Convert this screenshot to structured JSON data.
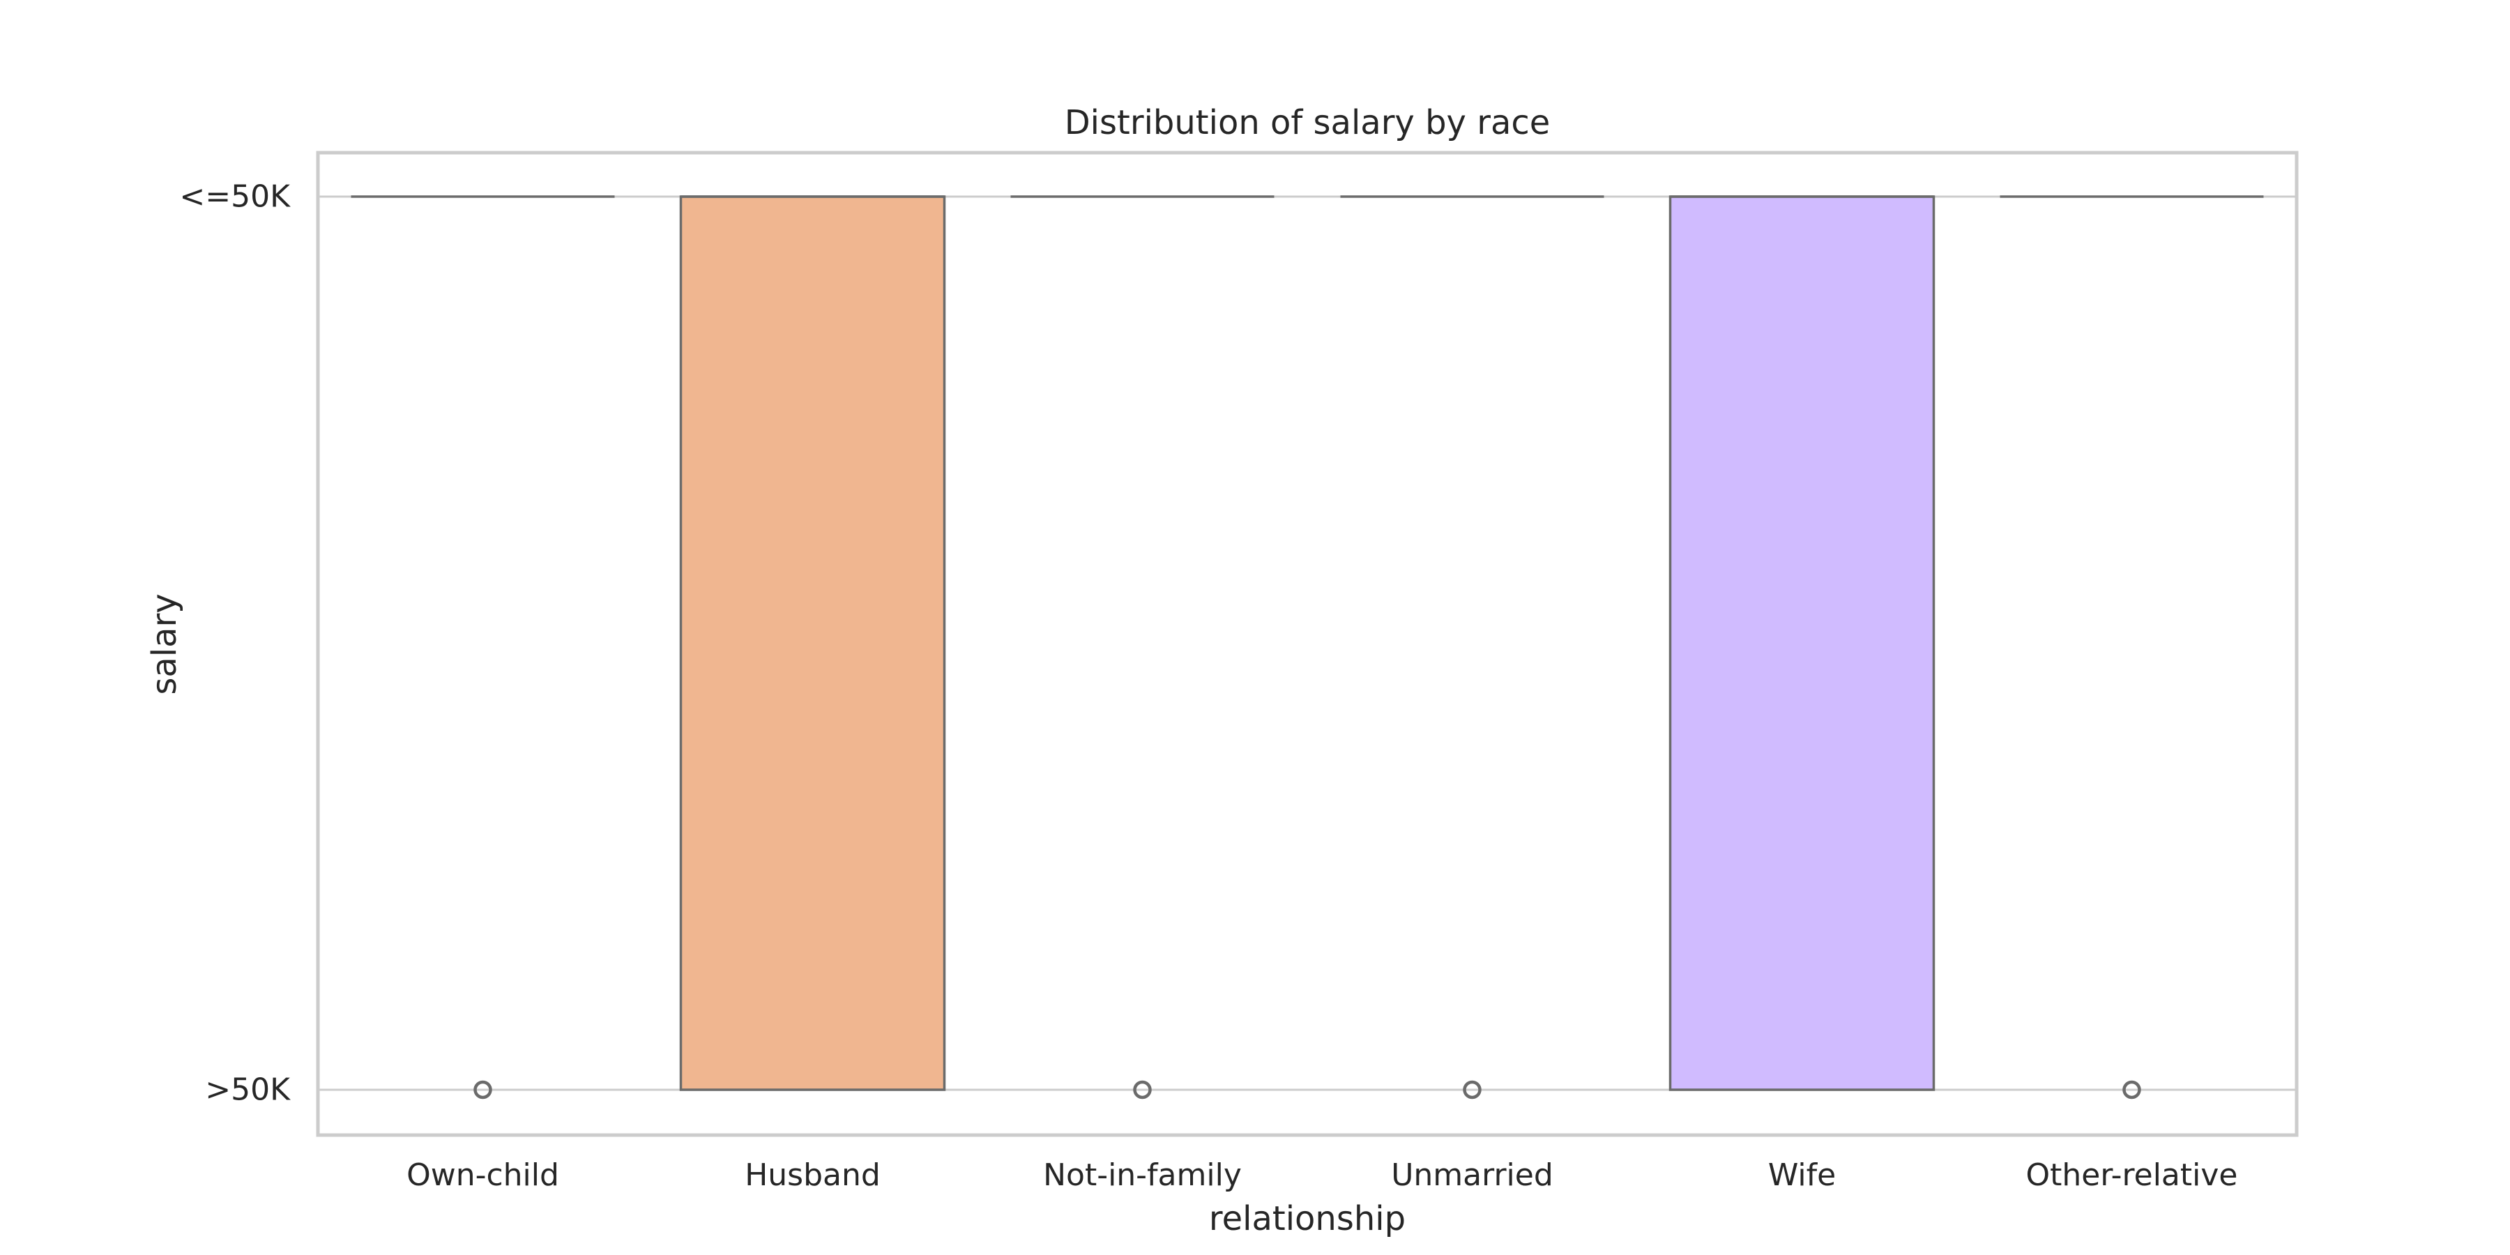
{
  "chart_data": {
    "type": "box",
    "title": "Distribution of salary by race",
    "xlabel": "relationship",
    "ylabel": "salary",
    "categories": [
      "Own-child",
      "Husband",
      "Not-in-family",
      "Unmarried",
      "Wife",
      "Other-relative"
    ],
    "y_categories": [
      "<=50K",
      ">50K"
    ],
    "y_orientation": "<=50K at top, >50K at bottom",
    "grid": true,
    "legend": "none",
    "boxes": [
      {
        "category": "Own-child",
        "q1": 0,
        "median": 0,
        "q3": 0,
        "whisker_low": 0,
        "whisker_high": 0,
        "outliers": [
          1
        ],
        "color": "#a1c9f4"
      },
      {
        "category": "Husband",
        "q1": 0,
        "median": 0,
        "q3": 1,
        "whisker_low": 0,
        "whisker_high": 1,
        "outliers": [],
        "color": "#f0b690"
      },
      {
        "category": "Not-in-family",
        "q1": 0,
        "median": 0,
        "q3": 0,
        "whisker_low": 0,
        "whisker_high": 0,
        "outliers": [
          1
        ],
        "color": "#8de5a1"
      },
      {
        "category": "Unmarried",
        "q1": 0,
        "median": 0,
        "q3": 0,
        "whisker_low": 0,
        "whisker_high": 0,
        "outliers": [
          1
        ],
        "color": "#ff9f9b"
      },
      {
        "category": "Wife",
        "q1": 0,
        "median": 0,
        "q3": 1,
        "whisker_low": 0,
        "whisker_high": 1,
        "outliers": [],
        "color": "#d0bbff"
      },
      {
        "category": "Other-relative",
        "q1": 0,
        "median": 0,
        "q3": 0,
        "whisker_low": 0,
        "whisker_high": 0,
        "outliers": [
          1
        ],
        "color": "#debb9b"
      }
    ],
    "colors": {
      "grid": "#cccccc",
      "frame": "#cccccc",
      "box_edge": "#6b6b6b",
      "text": "#262626",
      "background": "#ffffff"
    }
  }
}
